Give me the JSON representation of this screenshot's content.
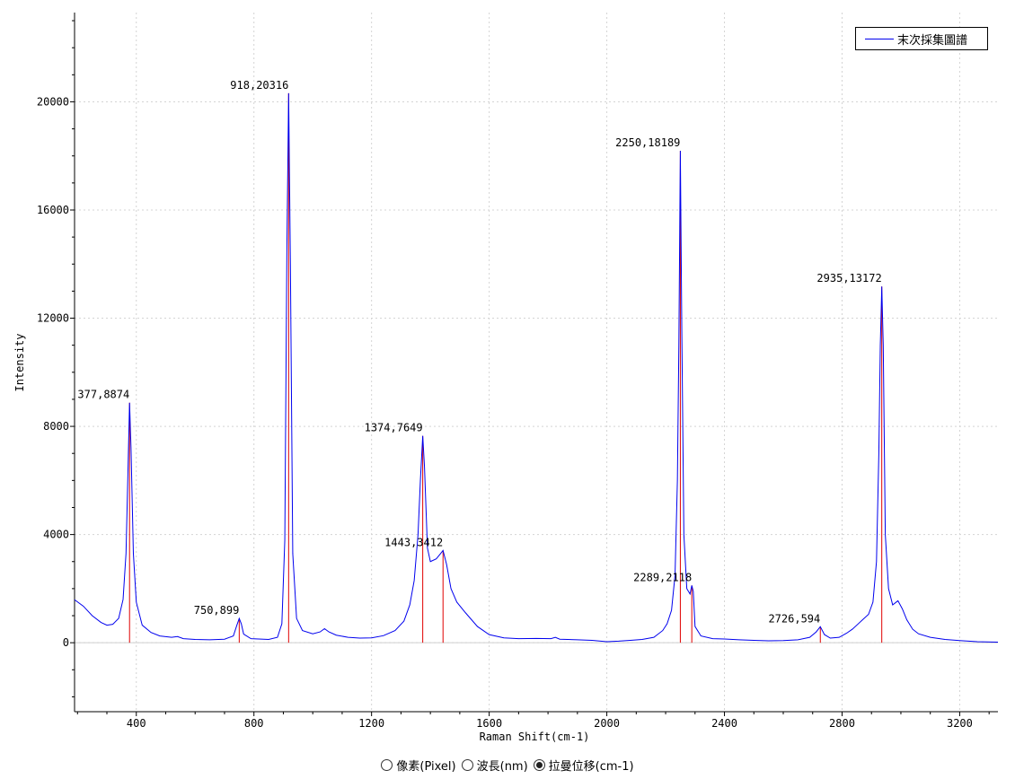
{
  "chart_data": {
    "type": "line",
    "xlabel": "Raman Shift(cm-1)",
    "ylabel": "Intensity",
    "xlim": [
      190,
      3330
    ],
    "ylim": [
      -2550,
      23300
    ],
    "xticks": [
      400,
      800,
      1200,
      1600,
      2000,
      2400,
      2800,
      3200
    ],
    "yticks": [
      0,
      4000,
      8000,
      12000,
      16000,
      20000
    ],
    "grid": true,
    "legend_position": "top-right",
    "series": [
      {
        "name": "末次採集圖譜",
        "color": "#0000ee",
        "points": [
          [
            190,
            1590
          ],
          [
            220,
            1350
          ],
          [
            250,
            1000
          ],
          [
            280,
            750
          ],
          [
            300,
            650
          ],
          [
            320,
            680
          ],
          [
            340,
            900
          ],
          [
            355,
            1600
          ],
          [
            365,
            3300
          ],
          [
            372,
            6500
          ],
          [
            377,
            8874
          ],
          [
            382,
            7200
          ],
          [
            390,
            3300
          ],
          [
            400,
            1500
          ],
          [
            420,
            650
          ],
          [
            450,
            380
          ],
          [
            480,
            250
          ],
          [
            520,
            200
          ],
          [
            540,
            230
          ],
          [
            560,
            150
          ],
          [
            600,
            120
          ],
          [
            650,
            110
          ],
          [
            700,
            130
          ],
          [
            730,
            250
          ],
          [
            742,
            650
          ],
          [
            750,
            899
          ],
          [
            757,
            700
          ],
          [
            765,
            320
          ],
          [
            790,
            150
          ],
          [
            850,
            120
          ],
          [
            880,
            200
          ],
          [
            895,
            700
          ],
          [
            905,
            3800
          ],
          [
            912,
            14500
          ],
          [
            918,
            20316
          ],
          [
            924,
            14000
          ],
          [
            932,
            3300
          ],
          [
            945,
            900
          ],
          [
            965,
            450
          ],
          [
            1000,
            330
          ],
          [
            1025,
            400
          ],
          [
            1040,
            520
          ],
          [
            1055,
            400
          ],
          [
            1080,
            280
          ],
          [
            1120,
            200
          ],
          [
            1160,
            170
          ],
          [
            1200,
            180
          ],
          [
            1240,
            260
          ],
          [
            1280,
            450
          ],
          [
            1310,
            800
          ],
          [
            1330,
            1400
          ],
          [
            1345,
            2300
          ],
          [
            1358,
            4000
          ],
          [
            1366,
            6000
          ],
          [
            1374,
            7649
          ],
          [
            1380,
            6500
          ],
          [
            1390,
            3500
          ],
          [
            1400,
            3000
          ],
          [
            1420,
            3100
          ],
          [
            1435,
            3300
          ],
          [
            1443,
            3412
          ],
          [
            1455,
            2900
          ],
          [
            1470,
            2000
          ],
          [
            1490,
            1500
          ],
          [
            1520,
            1100
          ],
          [
            1560,
            600
          ],
          [
            1600,
            300
          ],
          [
            1650,
            180
          ],
          [
            1700,
            150
          ],
          [
            1760,
            160
          ],
          [
            1810,
            150
          ],
          [
            1825,
            200
          ],
          [
            1840,
            130
          ],
          [
            1900,
            110
          ],
          [
            1950,
            90
          ],
          [
            2000,
            40
          ],
          [
            2040,
            60
          ],
          [
            2080,
            90
          ],
          [
            2120,
            120
          ],
          [
            2160,
            200
          ],
          [
            2190,
            450
          ],
          [
            2205,
            700
          ],
          [
            2220,
            1200
          ],
          [
            2232,
            2500
          ],
          [
            2240,
            6000
          ],
          [
            2245,
            11000
          ],
          [
            2250,
            18189
          ],
          [
            2255,
            11500
          ],
          [
            2262,
            4000
          ],
          [
            2272,
            2000
          ],
          [
            2283,
            1800
          ],
          [
            2289,
            2118
          ],
          [
            2294,
            1900
          ],
          [
            2300,
            600
          ],
          [
            2320,
            250
          ],
          [
            2360,
            150
          ],
          [
            2400,
            140
          ],
          [
            2450,
            110
          ],
          [
            2500,
            90
          ],
          [
            2550,
            70
          ],
          [
            2600,
            80
          ],
          [
            2650,
            110
          ],
          [
            2690,
            200
          ],
          [
            2712,
            400
          ],
          [
            2726,
            594
          ],
          [
            2740,
            300
          ],
          [
            2760,
            170
          ],
          [
            2790,
            200
          ],
          [
            2815,
            350
          ],
          [
            2835,
            500
          ],
          [
            2855,
            700
          ],
          [
            2870,
            850
          ],
          [
            2890,
            1050
          ],
          [
            2905,
            1500
          ],
          [
            2917,
            3000
          ],
          [
            2925,
            7000
          ],
          [
            2930,
            11000
          ],
          [
            2935,
            13172
          ],
          [
            2940,
            11000
          ],
          [
            2947,
            4000
          ],
          [
            2958,
            2000
          ],
          [
            2972,
            1400
          ],
          [
            2990,
            1550
          ],
          [
            3005,
            1250
          ],
          [
            3020,
            850
          ],
          [
            3040,
            500
          ],
          [
            3060,
            330
          ],
          [
            3100,
            200
          ],
          [
            3150,
            120
          ],
          [
            3200,
            80
          ],
          [
            3260,
            40
          ],
          [
            3330,
            20
          ]
        ]
      }
    ],
    "peaks": [
      {
        "x": 377,
        "y": 8874,
        "label": "377,8874"
      },
      {
        "x": 750,
        "y": 899,
        "label": "750,899"
      },
      {
        "x": 918,
        "y": 20316,
        "label": "918,20316"
      },
      {
        "x": 1374,
        "y": 7649,
        "label": "1374,7649"
      },
      {
        "x": 1443,
        "y": 3412,
        "label": "1443,3412"
      },
      {
        "x": 2250,
        "y": 18189,
        "label": "2250,18189"
      },
      {
        "x": 2289,
        "y": 2118,
        "label": "2289,2118"
      },
      {
        "x": 2726,
        "y": 594,
        "label": "2726,594"
      },
      {
        "x": 2935,
        "y": 13172,
        "label": "2935,13172"
      }
    ]
  },
  "legend": {
    "label": "末次採集圖譜"
  },
  "modes": [
    {
      "label": "像素(Pixel)",
      "checked": false
    },
    {
      "label": "波長(nm)",
      "checked": false
    },
    {
      "label": "拉曼位移(cm-1)",
      "checked": true
    }
  ]
}
